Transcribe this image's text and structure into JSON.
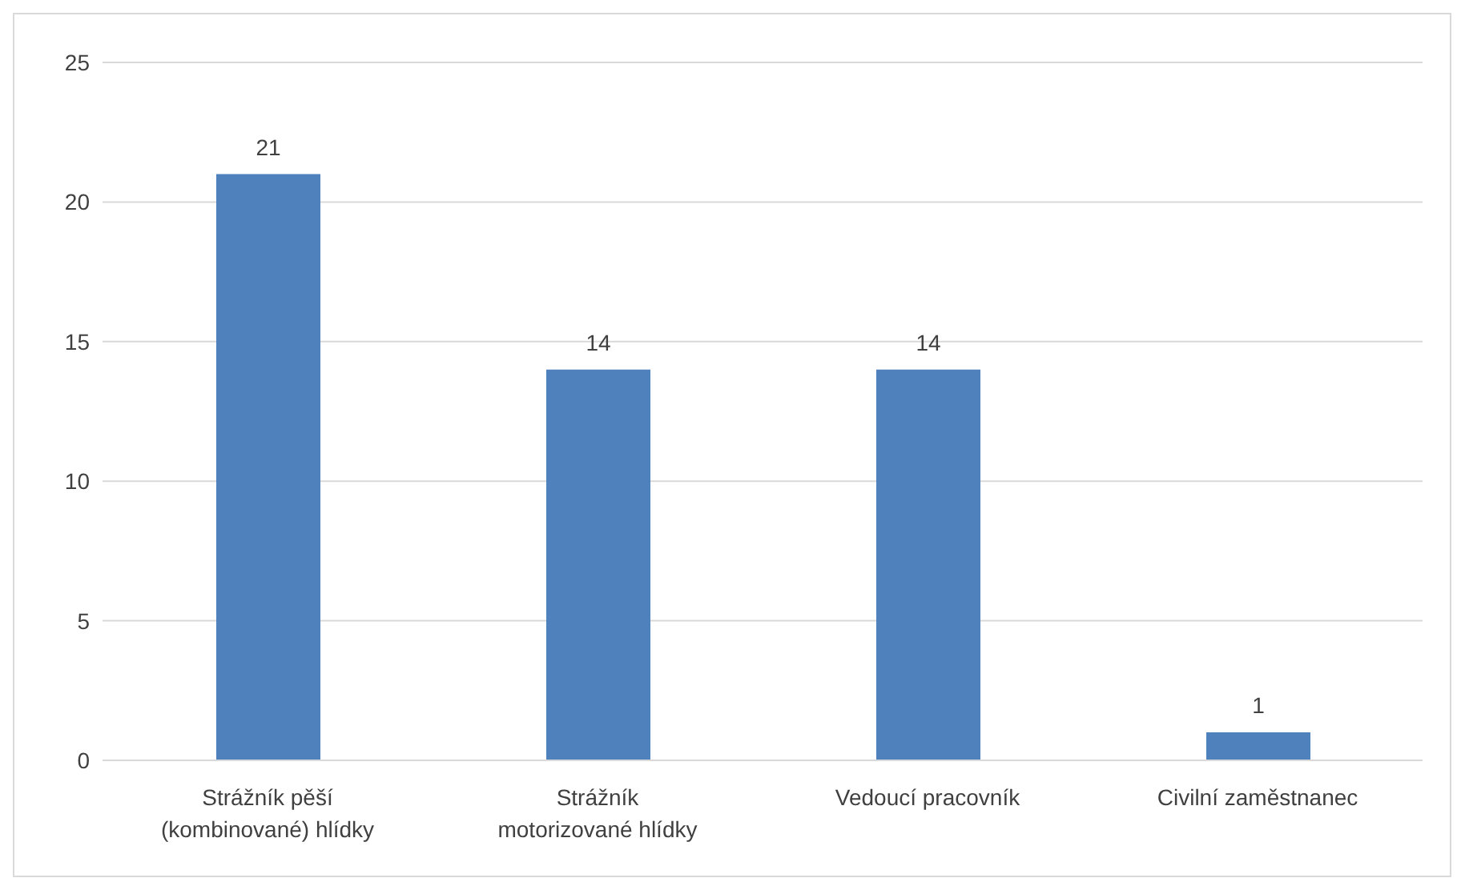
{
  "chart_data": {
    "type": "bar",
    "categories": [
      "Strážník pěší (kombinované) hlídky",
      "Strážník motorizované hlídky",
      "Vedoucí pracovník",
      "Civilní zaměstnanec"
    ],
    "values": [
      21,
      14,
      14,
      1
    ],
    "color": "#4f81bd",
    "ylim": [
      0,
      25
    ],
    "yticks": [
      0,
      5,
      10,
      15,
      20,
      25
    ],
    "grid": "y",
    "data_labels": true,
    "legend": false
  }
}
